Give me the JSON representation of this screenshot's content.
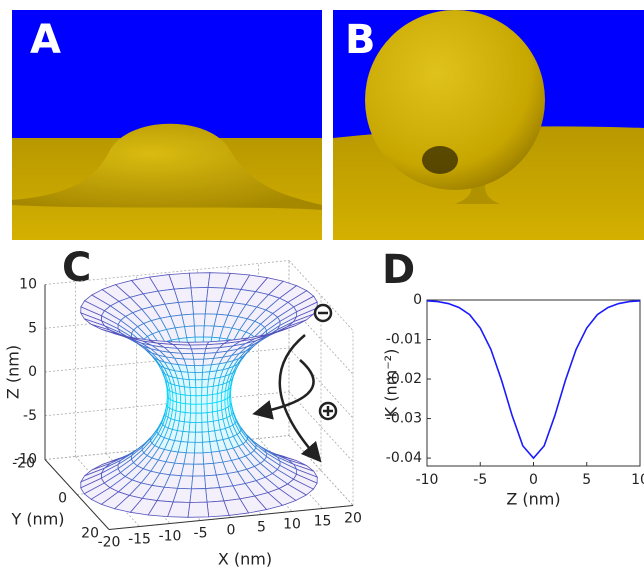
{
  "panels": [
    "A",
    "B",
    "C",
    "D"
  ],
  "chart_data": [
    {
      "type": "surface",
      "xlabel": "X (nm)",
      "ylabel": "Y (nm)",
      "zlabel": "Z (nm)",
      "xlim": [
        -20,
        20
      ],
      "ylim": [
        -20,
        20
      ],
      "zlim": [
        -10,
        10
      ],
      "xticks": [
        -20,
        -15,
        -10,
        -5,
        0,
        5,
        10,
        15,
        20
      ],
      "yticks": [
        -20,
        0,
        20
      ],
      "zticks": [
        -10,
        -5,
        0,
        5,
        10
      ],
      "grid": true
    },
    {
      "type": "line",
      "xlabel": "Z (nm)",
      "ylabel": "K (nm⁻²)",
      "x": [
        -10,
        -9,
        -8,
        -7,
        -6,
        -5,
        -4,
        -3,
        -2,
        -1,
        0,
        1,
        2,
        3,
        4,
        5,
        6,
        7,
        8,
        9,
        10
      ],
      "values": [
        -0.0002,
        -0.0004,
        -0.0009,
        -0.0019,
        -0.0037,
        -0.0071,
        -0.0125,
        -0.0203,
        -0.0293,
        -0.0369,
        -0.04,
        -0.0369,
        -0.0293,
        -0.0203,
        -0.0125,
        -0.0071,
        -0.0037,
        -0.0019,
        -0.0009,
        -0.0004,
        -0.0002
      ],
      "color": "#1a1aff",
      "xlim": [
        -10,
        10
      ],
      "ylim": [
        -0.042,
        0
      ],
      "xticks": [
        -10,
        -5,
        0,
        5,
        10
      ],
      "yticks": [
        0,
        -0.01,
        -0.02,
        -0.03,
        -0.04
      ]
    }
  ]
}
